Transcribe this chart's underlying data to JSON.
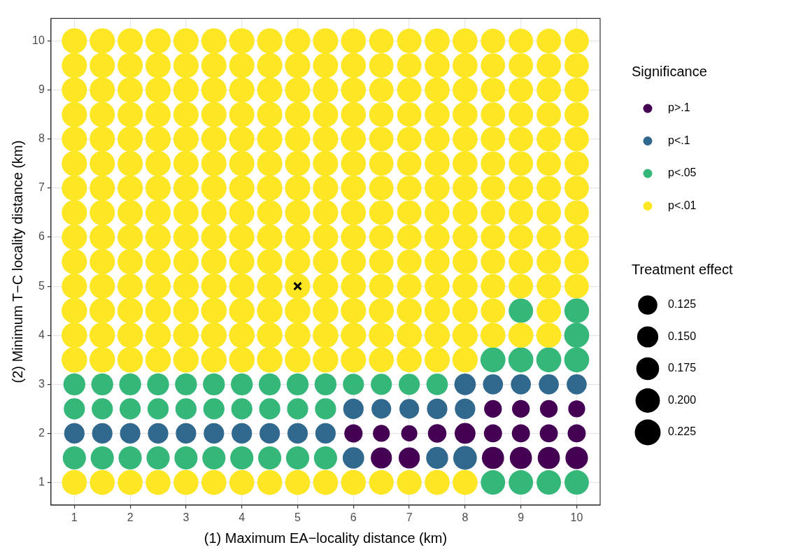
{
  "chart_data": {
    "type": "bubble",
    "xlabel": "(1) Maximum EA−locality distance (km)",
    "ylabel": "(2) Minimum T−C locality distance (km)",
    "legend_title": "Significance",
    "annotations": [
      "Treatment effect"
    ],
    "legend": "right",
    "grid": true,
    "xlim": [
      0.58,
      10.42
    ],
    "ylim": [
      0.54,
      10.46
    ],
    "xticks": [
      1,
      2,
      3,
      4,
      5,
      6,
      7,
      8,
      9,
      10
    ],
    "yticks": [
      1,
      2,
      3,
      4,
      5,
      6,
      7,
      8,
      9,
      10
    ],
    "size_legend": [
      0.125,
      {
        "value": 0.15,
        "label": "0.150"
      },
      0.175,
      {
        "value": 0.2,
        "label": "0.200"
      },
      0.225
    ],
    "series": [
      {
        "name": "p>.1",
        "color": "#440154",
        "x": [
          8.5,
          9,
          9.5,
          10,
          6,
          6.5,
          7,
          7.5,
          8,
          8.5,
          9,
          9.5,
          10,
          6.5,
          7,
          8.5,
          9,
          9.5,
          10
        ],
        "values": [
          2.5,
          2.5,
          2.5,
          2.5,
          2,
          2,
          2,
          2,
          2,
          2,
          2,
          2,
          2,
          1.5,
          1.5,
          1.5,
          1.5,
          1.5,
          1.5
        ],
        "sizes": [
          0.105,
          0.105,
          0.105,
          0.096,
          0.112,
          0.096,
          0.088,
          0.115,
          0.146,
          0.11,
          0.11,
          0.11,
          0.11,
          0.15,
          0.15,
          0.165,
          0.165,
          0.165,
          0.17
        ]
      },
      {
        "name": "p<.1",
        "color": "#31688e",
        "x": [
          8,
          8.5,
          9,
          9.5,
          10,
          6,
          6.5,
          7,
          7.5,
          8,
          1,
          1.5,
          2,
          2.5,
          3,
          3.5,
          4,
          4.5,
          5,
          5.5,
          6,
          7.5,
          8
        ],
        "values": [
          3,
          3,
          3,
          3,
          3,
          2.5,
          2.5,
          2.5,
          2.5,
          2.5,
          2,
          2,
          2,
          2,
          2,
          2,
          2,
          2,
          2,
          2,
          1.5,
          1.5,
          1.5
        ],
        "sizes": [
          0.155,
          0.135,
          0.135,
          0.135,
          0.135,
          0.14,
          0.13,
          0.13,
          0.14,
          0.14,
          0.14,
          0.14,
          0.14,
          0.14,
          0.14,
          0.14,
          0.14,
          0.14,
          0.14,
          0.14,
          0.155,
          0.162,
          0.188
        ]
      },
      {
        "name": "p<.05",
        "color": "#35b779",
        "x": [
          9,
          10,
          10,
          8.5,
          9,
          9.5,
          10,
          1,
          1.5,
          2,
          2.5,
          3,
          3.5,
          4,
          4.5,
          5,
          5.5,
          6,
          6.5,
          7,
          7.5,
          1,
          1.5,
          2,
          2.5,
          3,
          3.5,
          4,
          4.5,
          5,
          5.5,
          1,
          1.5,
          2,
          2.5,
          3,
          3.5,
          4,
          4.5,
          5,
          5.5,
          8.5,
          9,
          9.5,
          10
        ],
        "values": [
          4.5,
          4.5,
          4,
          3.5,
          3.5,
          3.5,
          3.5,
          3,
          3,
          3,
          3,
          3,
          3,
          3,
          3,
          3,
          3,
          3,
          3,
          3,
          3,
          2.5,
          2.5,
          2.5,
          2.5,
          2.5,
          2.5,
          2.5,
          2.5,
          2.5,
          2.5,
          1.5,
          1.5,
          1.5,
          1.5,
          1.5,
          1.5,
          1.5,
          1.5,
          1.5,
          1.5,
          1,
          1,
          1,
          1
        ],
        "sizes": [
          0.2,
          0.205,
          0.21,
          0.21,
          0.21,
          0.21,
          0.21,
          0.162,
          0.162,
          0.162,
          0.162,
          0.162,
          0.162,
          0.162,
          0.162,
          0.162,
          0.162,
          0.15,
          0.15,
          0.15,
          0.155,
          0.15,
          0.15,
          0.15,
          0.15,
          0.15,
          0.15,
          0.15,
          0.15,
          0.15,
          0.15,
          0.181,
          0.181,
          0.181,
          0.181,
          0.181,
          0.181,
          0.181,
          0.181,
          0.181,
          0.181,
          0.2,
          0.2,
          0.2,
          0.2
        ]
      },
      {
        "name": "p<.01",
        "color": "#fde725",
        "x": [
          1,
          1.5,
          2,
          2.5,
          3,
          3.5,
          4,
          4.5,
          5,
          5.5,
          6,
          6.5,
          7,
          7.5,
          8,
          8.5,
          9,
          9.5,
          10,
          1,
          1.5,
          2,
          2.5,
          3,
          3.5,
          4,
          4.5,
          5,
          5.5,
          6,
          6.5,
          7,
          7.5,
          8,
          8.5,
          9,
          9.5,
          10,
          1,
          1.5,
          2,
          2.5,
          3,
          3.5,
          4,
          4.5,
          5,
          5.5,
          6,
          6.5,
          7,
          7.5,
          8,
          8.5,
          9,
          9.5,
          10,
          1,
          1.5,
          2,
          2.5,
          3,
          3.5,
          4,
          4.5,
          5,
          5.5,
          6,
          6.5,
          7,
          7.5,
          8,
          8.5,
          9,
          9.5,
          10,
          1,
          1.5,
          2,
          2.5,
          3,
          3.5,
          4,
          4.5,
          5,
          5.5,
          6,
          6.5,
          7,
          7.5,
          8,
          8.5,
          9,
          9.5,
          10,
          1,
          1.5,
          2,
          2.5,
          3,
          3.5,
          4,
          4.5,
          5,
          5.5,
          6,
          6.5,
          7,
          7.5,
          8,
          8.5,
          9,
          9.5,
          10,
          1,
          1.5,
          2,
          2.5,
          3,
          3.5,
          4,
          4.5,
          5,
          5.5,
          6,
          6.5,
          7,
          7.5,
          8,
          8.5,
          9,
          9.5,
          10,
          1,
          1.5,
          2,
          2.5,
          3,
          3.5,
          4,
          4.5,
          5,
          5.5,
          6,
          6.5,
          7,
          7.5,
          8,
          8.5,
          9,
          9.5,
          10,
          1,
          1.5,
          2,
          2.5,
          3,
          3.5,
          4,
          4.5,
          5,
          5.5,
          6,
          6.5,
          7,
          7.5,
          8,
          8.5,
          9,
          9.5,
          10,
          1,
          1.5,
          2,
          2.5,
          3,
          3.5,
          4,
          4.5,
          5,
          5.5,
          6,
          6.5,
          7,
          7.5,
          8,
          8.5,
          9,
          9.5,
          10,
          1,
          1.5,
          2,
          2.5,
          3,
          3.5,
          4,
          4.5,
          5,
          5.5,
          6,
          6.5,
          7,
          7.5,
          8,
          8.5,
          9,
          9.5,
          10,
          1,
          1.5,
          2,
          2.5,
          3,
          3.5,
          4,
          4.5,
          5,
          5.5,
          6,
          6.5,
          7,
          7.5,
          8,
          8.5,
          9.5,
          1,
          1.5,
          2,
          2.5,
          3,
          3.5,
          4,
          4.5,
          5,
          5.5,
          6,
          6.5,
          7,
          7.5,
          8,
          8.5,
          9,
          9.5,
          1,
          1.5,
          2,
          2.5,
          3,
          3.5,
          4,
          4.5,
          5,
          5.5,
          6,
          6.5,
          7,
          7.5,
          8,
          1,
          1.5,
          2,
          2.5,
          3,
          3.5,
          4,
          4.5,
          5,
          5.5,
          6,
          6.5,
          7,
          7.5,
          8
        ],
        "values": [
          10,
          10,
          10,
          10,
          10,
          10,
          10,
          10,
          10,
          10,
          10,
          10,
          10,
          10,
          10,
          10,
          10,
          10,
          10,
          9.5,
          9.5,
          9.5,
          9.5,
          9.5,
          9.5,
          9.5,
          9.5,
          9.5,
          9.5,
          9.5,
          9.5,
          9.5,
          9.5,
          9.5,
          9.5,
          9.5,
          9.5,
          9.5,
          9,
          9,
          9,
          9,
          9,
          9,
          9,
          9,
          9,
          9,
          9,
          9,
          9,
          9,
          9,
          9,
          9,
          9,
          9,
          8.5,
          8.5,
          8.5,
          8.5,
          8.5,
          8.5,
          8.5,
          8.5,
          8.5,
          8.5,
          8.5,
          8.5,
          8.5,
          8.5,
          8.5,
          8.5,
          8.5,
          8.5,
          8.5,
          8,
          8,
          8,
          8,
          8,
          8,
          8,
          8,
          8,
          8,
          8,
          8,
          8,
          8,
          8,
          8,
          8,
          8,
          8,
          7.5,
          7.5,
          7.5,
          7.5,
          7.5,
          7.5,
          7.5,
          7.5,
          7.5,
          7.5,
          7.5,
          7.5,
          7.5,
          7.5,
          7.5,
          7.5,
          7.5,
          7.5,
          7.5,
          7,
          7,
          7,
          7,
          7,
          7,
          7,
          7,
          7,
          7,
          7,
          7,
          7,
          7,
          7,
          7,
          7,
          7,
          7,
          6.5,
          6.5,
          6.5,
          6.5,
          6.5,
          6.5,
          6.5,
          6.5,
          6.5,
          6.5,
          6.5,
          6.5,
          6.5,
          6.5,
          6.5,
          6.5,
          6.5,
          6.5,
          6.5,
          6,
          6,
          6,
          6,
          6,
          6,
          6,
          6,
          6,
          6,
          6,
          6,
          6,
          6,
          6,
          6,
          6,
          6,
          6,
          5.5,
          5.5,
          5.5,
          5.5,
          5.5,
          5.5,
          5.5,
          5.5,
          5.5,
          5.5,
          5.5,
          5.5,
          5.5,
          5.5,
          5.5,
          5.5,
          5.5,
          5.5,
          5.5,
          5,
          5,
          5,
          5,
          5,
          5,
          5,
          5,
          5,
          5,
          5,
          5,
          5,
          5,
          5,
          5,
          5,
          5,
          5,
          4.5,
          4.5,
          4.5,
          4.5,
          4.5,
          4.5,
          4.5,
          4.5,
          4.5,
          4.5,
          4.5,
          4.5,
          4.5,
          4.5,
          4.5,
          4.5,
          4.5,
          4,
          4,
          4,
          4,
          4,
          4,
          4,
          4,
          4,
          4,
          4,
          4,
          4,
          4,
          4,
          4,
          4,
          4,
          3.5,
          3.5,
          3.5,
          3.5,
          3.5,
          3.5,
          3.5,
          3.5,
          3.5,
          3.5,
          3.5,
          3.5,
          3.5,
          3.5,
          3.5,
          1,
          1,
          1,
          1,
          1,
          1,
          1,
          1,
          1,
          1,
          1,
          1,
          1,
          1,
          1
        ],
        "sizes": [
          0.215,
          0.215,
          0.215,
          0.215,
          0.215,
          0.215,
          0.215,
          0.215,
          0.215,
          0.215,
          0.21,
          0.2,
          0.2,
          0.21,
          0.21,
          0.2,
          0.2,
          0.2,
          0.2,
          0.215,
          0.215,
          0.215,
          0.215,
          0.215,
          0.215,
          0.215,
          0.215,
          0.215,
          0.215,
          0.21,
          0.2,
          0.2,
          0.21,
          0.21,
          0.2,
          0.2,
          0.2,
          0.2,
          0.215,
          0.215,
          0.215,
          0.215,
          0.215,
          0.215,
          0.215,
          0.215,
          0.215,
          0.215,
          0.21,
          0.2,
          0.2,
          0.21,
          0.21,
          0.2,
          0.2,
          0.2,
          0.2,
          0.215,
          0.215,
          0.215,
          0.215,
          0.215,
          0.215,
          0.215,
          0.215,
          0.215,
          0.215,
          0.21,
          0.2,
          0.2,
          0.21,
          0.21,
          0.2,
          0.2,
          0.2,
          0.2,
          0.215,
          0.215,
          0.215,
          0.215,
          0.215,
          0.215,
          0.215,
          0.215,
          0.215,
          0.215,
          0.21,
          0.2,
          0.2,
          0.21,
          0.21,
          0.2,
          0.2,
          0.2,
          0.2,
          0.215,
          0.215,
          0.215,
          0.215,
          0.215,
          0.215,
          0.215,
          0.215,
          0.215,
          0.215,
          0.21,
          0.2,
          0.2,
          0.21,
          0.21,
          0.2,
          0.2,
          0.2,
          0.2,
          0.215,
          0.215,
          0.215,
          0.215,
          0.215,
          0.215,
          0.215,
          0.215,
          0.215,
          0.215,
          0.21,
          0.2,
          0.2,
          0.21,
          0.21,
          0.2,
          0.2,
          0.2,
          0.2,
          0.215,
          0.215,
          0.215,
          0.215,
          0.215,
          0.215,
          0.215,
          0.215,
          0.215,
          0.215,
          0.21,
          0.2,
          0.2,
          0.21,
          0.21,
          0.2,
          0.2,
          0.2,
          0.2,
          0.215,
          0.215,
          0.215,
          0.215,
          0.215,
          0.215,
          0.215,
          0.215,
          0.215,
          0.215,
          0.21,
          0.2,
          0.2,
          0.21,
          0.21,
          0.2,
          0.2,
          0.2,
          0.2,
          0.215,
          0.215,
          0.215,
          0.215,
          0.215,
          0.215,
          0.215,
          0.215,
          0.215,
          0.215,
          0.21,
          0.2,
          0.2,
          0.21,
          0.21,
          0.2,
          0.2,
          0.2,
          0.2,
          0.215,
          0.215,
          0.215,
          0.215,
          0.215,
          0.215,
          0.215,
          0.215,
          0.215,
          0.215,
          0.21,
          0.2,
          0.2,
          0.21,
          0.21,
          0.2,
          0.2,
          0.2,
          0.2,
          0.22,
          0.22,
          0.22,
          0.22,
          0.22,
          0.22,
          0.22,
          0.22,
          0.22,
          0.22,
          0.215,
          0.21,
          0.21,
          0.215,
          0.215,
          0.2,
          0.2,
          0.22,
          0.22,
          0.22,
          0.22,
          0.22,
          0.22,
          0.22,
          0.22,
          0.22,
          0.22,
          0.215,
          0.21,
          0.21,
          0.215,
          0.215,
          0.21,
          0.21,
          0.21,
          0.22,
          0.22,
          0.22,
          0.22,
          0.22,
          0.22,
          0.22,
          0.22,
          0.22,
          0.22,
          0.215,
          0.21,
          0.21,
          0.215,
          0.215,
          0.21,
          0.21,
          0.21,
          0.21,
          0.21,
          0.21,
          0.21,
          0.21,
          0.21,
          0.21,
          0.21,
          0.205,
          0.205,
          0.21,
          0.21
        ]
      },
      {
        "type": "scatter",
        "marker": "cross",
        "color": "#000000",
        "x": [
          5
        ],
        "values": [
          5
        ]
      }
    ]
  }
}
